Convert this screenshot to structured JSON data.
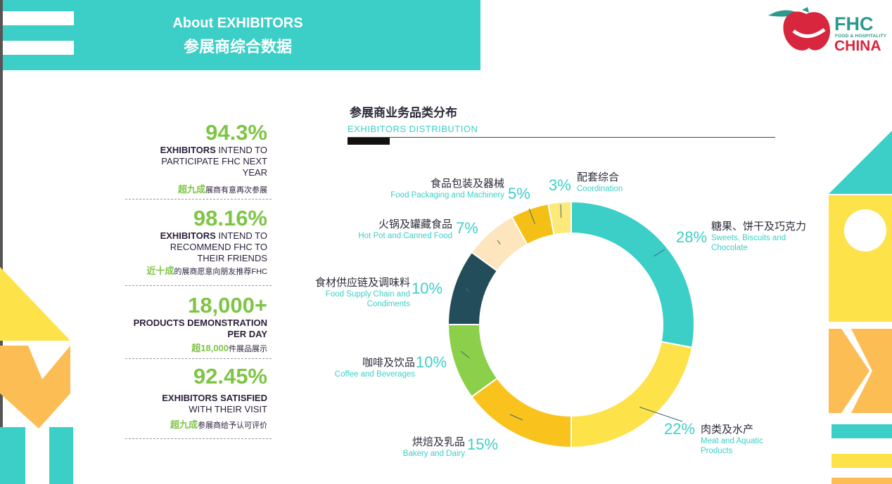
{
  "header": {
    "title_en": "About EXHIBITORS",
    "title_cn": "参展商综合数据"
  },
  "logo": {
    "brand": "FHC",
    "sub": "FOOD & HOSPITALITY",
    "country": "CHINA",
    "colors": {
      "apple": "#d7263d",
      "leaf": "#2a9a8e"
    }
  },
  "stats": [
    {
      "value": "94.3%",
      "en_bold": "EXHIBITORS",
      "en_rest": " INTEND TO PARTICIPATE FHC NEXT YEAR",
      "cn_highlight": "超九成",
      "cn_rest": "展商有意再次参展"
    },
    {
      "value": "98.16%",
      "en_bold": "EXHIBITORS",
      "en_rest": " INTEND TO RECOMMEND FHC TO THEIR FRIENDS",
      "cn_highlight": "近十成",
      "cn_rest": "的展商愿意向朋友推荐FHC"
    },
    {
      "value": "18,000+",
      "en_bold": "PRODUCTS DEMONSTRATION PER DAY",
      "en_rest": "",
      "cn_highlight": "超18,000",
      "cn_rest": "件展品展示"
    },
    {
      "value": "92.45%",
      "en_bold": "EXHIBITORS SATISFIED",
      "en_rest": " WITH THEIR VISIT",
      "cn_highlight": "超九成",
      "cn_rest": "参展商给予认可评价"
    }
  ],
  "chart_data": {
    "type": "pie",
    "variant": "donut",
    "title": "参展商业务品类分布",
    "subtitle": "EXHIBITORS  DISTRIBUTION",
    "slices": [
      {
        "cn": "糖果、饼干及巧克力",
        "en": "Sweets, Biscuits and Chocolate",
        "value": 28,
        "label": "28%",
        "color": "#3ccfc7"
      },
      {
        "cn": "肉类及水产",
        "en": "Meat and Aquatic Products",
        "value": 22,
        "label": "22%",
        "color": "#fde24a"
      },
      {
        "cn": "烘焙及乳品",
        "en": "Bakery and Dairy",
        "value": 15,
        "label": "15%",
        "color": "#f9c21d"
      },
      {
        "cn": "咖啡及饮品",
        "en": "Coffee and Beverages",
        "value": 10,
        "label": "10%",
        "color": "#8bcf4a"
      },
      {
        "cn": "食材供应链及调味料",
        "en": "Food Supply Chain and Condiments",
        "value": 10,
        "label": "10%",
        "color": "#234d5a"
      },
      {
        "cn": "火锅及罐藏食品",
        "en": "Hot Pot and Canned Food",
        "value": 7,
        "label": "7%",
        "color": "#fde5bd"
      },
      {
        "cn": "食品包装及器械",
        "en": "Food Packaging and Machinery",
        "value": 5,
        "label": "5%",
        "color": "#f5c016"
      },
      {
        "cn": "配套综合",
        "en": "Coordination",
        "value": 3,
        "label": "3%",
        "color": "#fde87a"
      }
    ]
  }
}
